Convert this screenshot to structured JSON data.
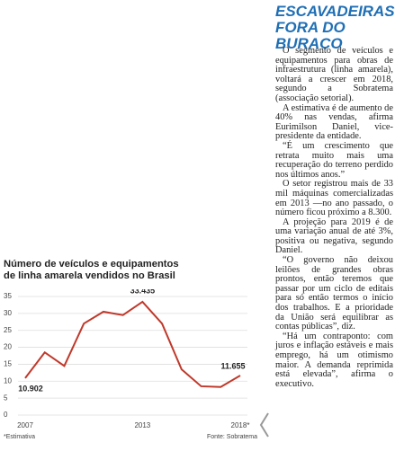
{
  "article": {
    "title": "ESCAVADEIRAS FORA DO BURACO",
    "paragraphs": [
      "O segmento de veículos e equipamentos para obras de infraestrutura (linha amarela), voltará a crescer em 2018, segundo a Sobratema (associação setorial).",
      "A estimativa é de aumento de 40% nas vendas, afirma Eurimilson Daniel, vice-presidente da entidade.",
      "“É um crescimento que retrata muito mais uma recuperação do terreno perdido nos últimos anos.”",
      "O setor registrou mais de 33 mil máquinas comercializadas em 2013 —no ano passado, o número ficou próximo a 8.300.",
      "A projeção para 2019 é de uma variação anual de até 3%, positiva ou negativa, segundo Daniel.",
      "“O governo não deixou leilões de grandes obras prontos, então teremos que passar por um ciclo de editais para só então termos o início dos trabalhos. E a prioridade da União será equilibrar as contas públicas”, diz.",
      "“Há um contraponto: com juros e inflação estáveis e mais emprego, há um otimismo maior. A demanda reprimida está elevada”, afirma o executivo."
    ]
  },
  "chart_data": {
    "type": "line",
    "title": "Número de veículos e equipamentos de linha amarela vendidos no Brasil",
    "categories": [
      "2007",
      null,
      null,
      null,
      null,
      null,
      "2013",
      null,
      null,
      null,
      null,
      "2018*"
    ],
    "values": [
      10.902,
      18.5,
      14.5,
      27,
      30.5,
      29.5,
      33.435,
      27,
      13.5,
      8.5,
      8.3,
      11.655
    ],
    "value_labels": [
      "10.902",
      null,
      null,
      null,
      null,
      null,
      "33.435",
      null,
      null,
      null,
      null,
      "11.655"
    ],
    "color": "#c0392b",
    "ylim": [
      0,
      35
    ],
    "yticks": [
      0,
      5,
      10,
      15,
      20,
      25,
      30,
      35
    ],
    "grid": true,
    "note": "*Estimativa",
    "source": "Fonte: Sobratema"
  }
}
